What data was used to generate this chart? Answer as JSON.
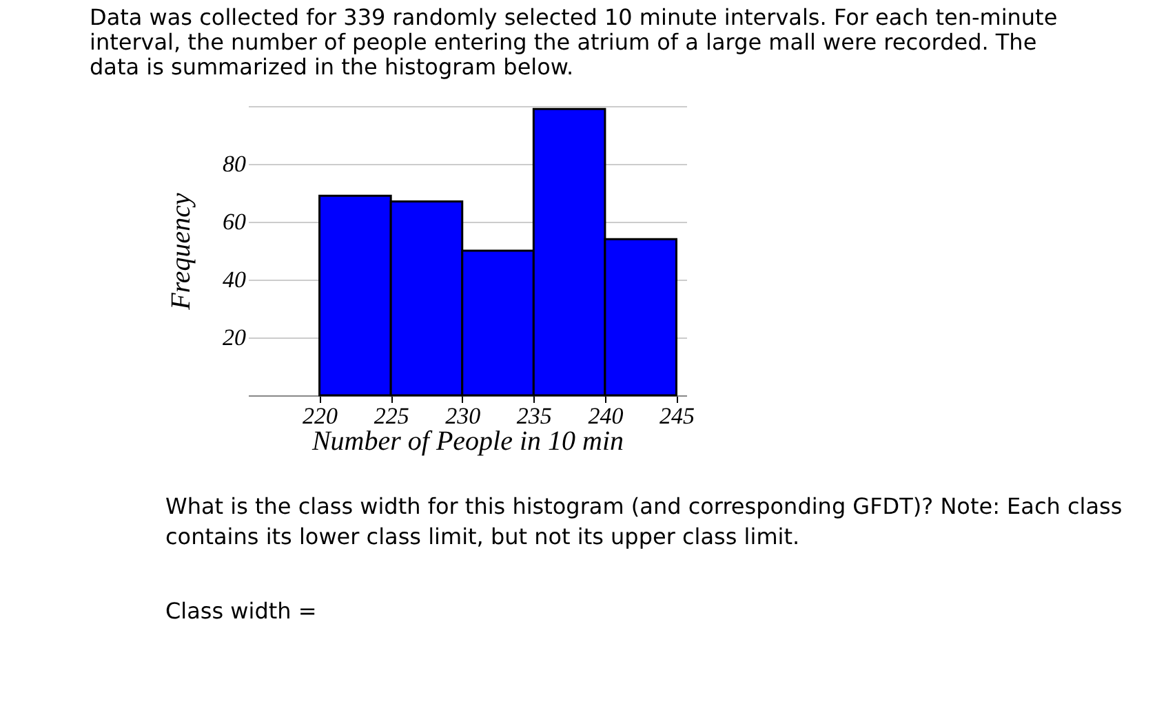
{
  "chart_data": {
    "type": "histogram",
    "title": [
      "Data was collected for 339 randomly selected 10 minute intervals. For each ten-minute",
      "interval, the number of people entering the atrium of a large mall were recorded. The",
      "data is summarized in the histogram below."
    ],
    "xlabel": "Number of People in 10 min",
    "ylabel": "Frequency",
    "bins": [
      220,
      225,
      230,
      235,
      240,
      245
    ],
    "values": [
      69,
      67,
      50,
      99,
      54
    ],
    "color": "#0000ff",
    "xlim": [
      215,
      245.7
    ],
    "ylim": [
      0,
      100
    ],
    "xticks": [
      220,
      225,
      230,
      235,
      240,
      245
    ],
    "yticks": [
      20,
      40,
      60,
      80,
      {
        "value": 100,
        "label": null
      }
    ],
    "grid": "y",
    "annotations": [
      "What is the class width for this histogram (and corresponding GFDT)? Note: Each class",
      "contains its lower class limit, but not its upper class limit.",
      "Class width ="
    ]
  }
}
